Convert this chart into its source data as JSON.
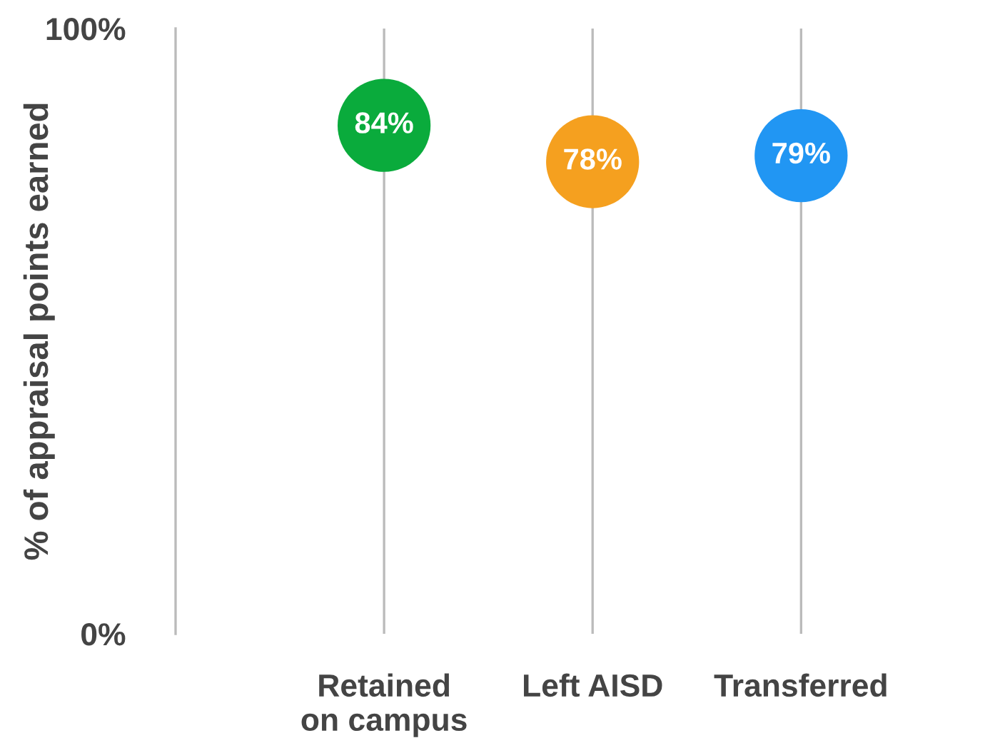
{
  "chart_data": {
    "type": "scatter",
    "ylabel": "% of appraisal points earned",
    "categories": [
      "Retained\non campus",
      "Left AISD",
      "Transferred"
    ],
    "values": [
      84,
      78,
      79
    ],
    "colors": [
      "#0aab3c",
      "#f5a01f",
      "#2196f3"
    ],
    "value_labels": [
      "84%",
      "78%",
      "79%"
    ],
    "ylim": [
      0,
      100
    ],
    "yticks": [
      {
        "value": 0,
        "label": "0%"
      },
      {
        "value": 100,
        "label": "100%"
      }
    ],
    "grid": "x",
    "marker": "circle"
  }
}
